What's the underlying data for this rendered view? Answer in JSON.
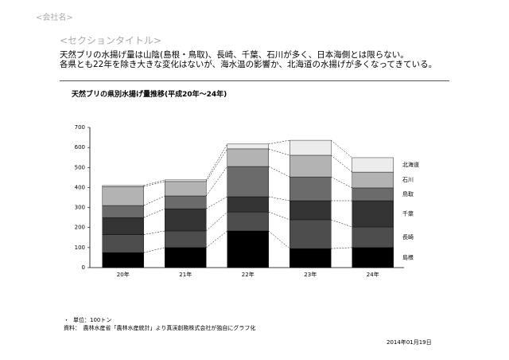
{
  "header": {
    "company": "<会社名>",
    "section": "<セクションタイトル>",
    "body": [
      "天然ブリの水揚げ量は山陰(島根・鳥取)、長崎、千葉、石川が多く、日本海側とは限らない。",
      "各県とも22年を除き大きな変化はないが、海水温の影響か、北海道の水揚げが多くなってきている。"
    ]
  },
  "chart_data": {
    "type": "bar",
    "stacked": true,
    "title": "天然ブリの県別水揚げ量推移(平成20年～24年)",
    "categories": [
      "20年",
      "21年",
      "22年",
      "23年",
      "24年"
    ],
    "series": [
      {
        "name": "島根",
        "color": "#000000",
        "values": [
          75,
          100,
          183,
          95,
          100
        ]
      },
      {
        "name": "長崎",
        "color": "#4d4d4d",
        "values": [
          90,
          83,
          95,
          144,
          103
        ]
      },
      {
        "name": "千葉",
        "color": "#333333",
        "values": [
          85,
          111,
          76,
          95,
          131
        ]
      },
      {
        "name": "鳥取",
        "color": "#6b6b6b",
        "values": [
          60,
          64,
          151,
          119,
          64
        ]
      },
      {
        "name": "石川",
        "color": "#b3b3b3",
        "values": [
          95,
          72,
          88,
          108,
          79
        ]
      },
      {
        "name": "北海道",
        "color": "#ececec",
        "values": [
          5,
          8,
          24,
          75,
          72
        ]
      }
    ],
    "ylim": [
      0,
      700
    ],
    "yticks": [
      0,
      100,
      200,
      300,
      400,
      500,
      600,
      700
    ],
    "grid": false
  },
  "footer": {
    "bullet": "・",
    "unit": "単位：100トン",
    "source": "資料：　農林水産省「農林水産統計」より真渓創務株式会社が独自にグラフ化",
    "date": "2014年01月19日"
  }
}
